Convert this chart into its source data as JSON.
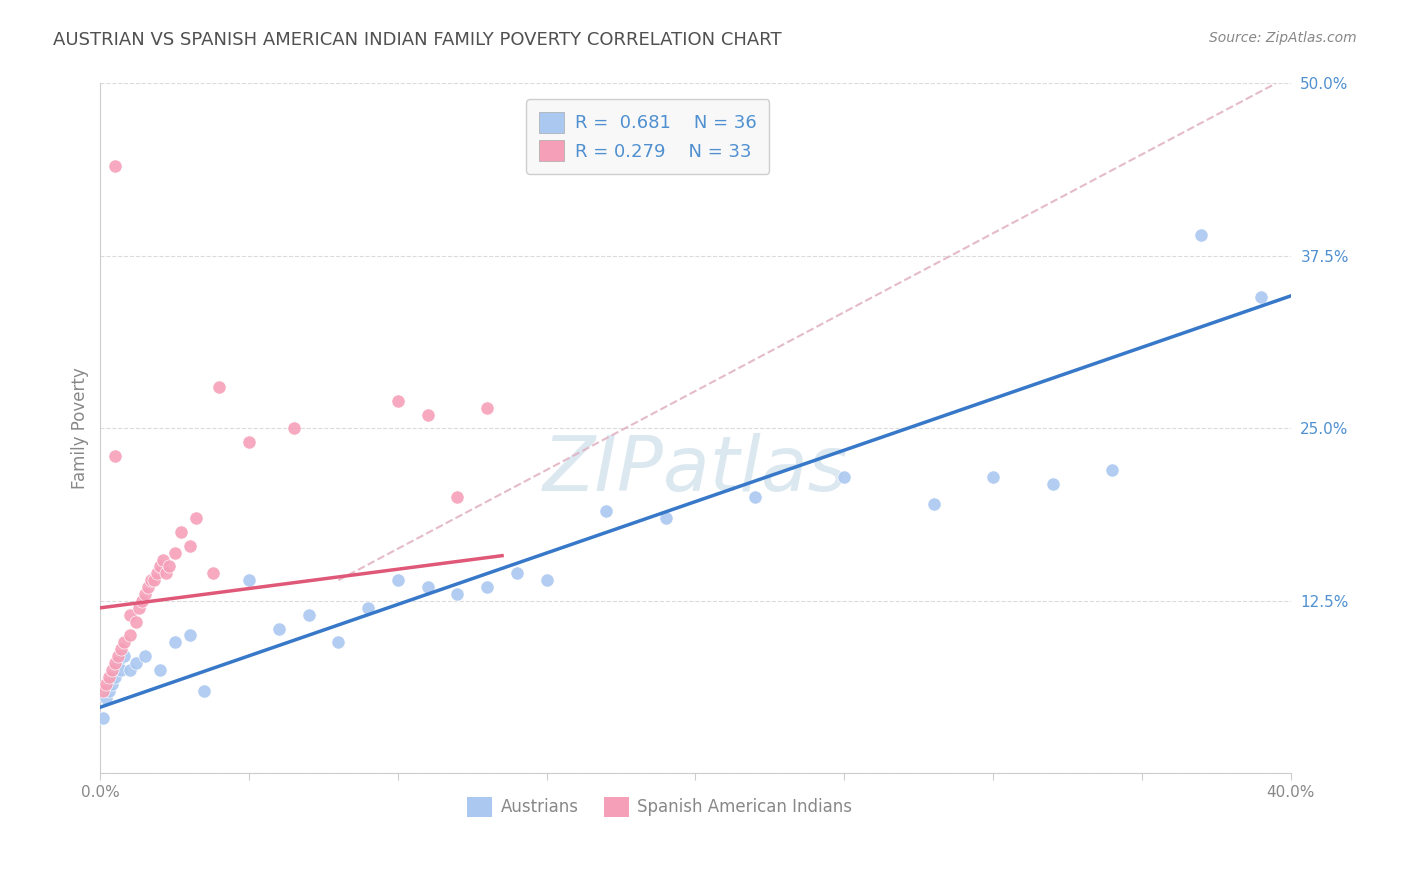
{
  "title": "AUSTRIAN VS SPANISH AMERICAN INDIAN FAMILY POVERTY CORRELATION CHART",
  "source": "Source: ZipAtlas.com",
  "ylabel": "Family Poverty",
  "xlim": [
    0.0,
    0.4
  ],
  "ylim": [
    0.0,
    0.5
  ],
  "xticks": [
    0.0,
    0.05,
    0.1,
    0.15,
    0.2,
    0.25,
    0.3,
    0.35,
    0.4
  ],
  "xticklabels": [
    "0.0%",
    "",
    "",
    "",
    "",
    "",
    "",
    "",
    "40.0%"
  ],
  "yticks": [
    0.0,
    0.125,
    0.25,
    0.375,
    0.5
  ],
  "yticklabels": [
    "",
    "12.5%",
    "25.0%",
    "37.5%",
    "50.0%"
  ],
  "austrians_x": [
    0.001,
    0.002,
    0.003,
    0.004,
    0.005,
    0.006,
    0.007,
    0.008,
    0.01,
    0.012,
    0.015,
    0.02,
    0.025,
    0.03,
    0.035,
    0.05,
    0.06,
    0.07,
    0.08,
    0.09,
    0.1,
    0.11,
    0.12,
    0.13,
    0.14,
    0.15,
    0.17,
    0.19,
    0.22,
    0.25,
    0.28,
    0.3,
    0.32,
    0.34,
    0.37,
    0.39
  ],
  "austrians_y": [
    0.04,
    0.055,
    0.06,
    0.065,
    0.07,
    0.08,
    0.075,
    0.085,
    0.075,
    0.08,
    0.085,
    0.075,
    0.095,
    0.1,
    0.06,
    0.14,
    0.105,
    0.115,
    0.095,
    0.12,
    0.14,
    0.135,
    0.13,
    0.135,
    0.145,
    0.14,
    0.19,
    0.185,
    0.2,
    0.215,
    0.195,
    0.215,
    0.21,
    0.22,
    0.39,
    0.345
  ],
  "spanish_x": [
    0.001,
    0.002,
    0.003,
    0.004,
    0.005,
    0.006,
    0.007,
    0.008,
    0.01,
    0.01,
    0.012,
    0.013,
    0.014,
    0.015,
    0.016,
    0.017,
    0.018,
    0.019,
    0.02,
    0.021,
    0.022,
    0.023,
    0.025,
    0.027,
    0.03,
    0.032,
    0.038,
    0.05,
    0.065,
    0.1,
    0.11,
    0.12,
    0.13
  ],
  "spanish_y": [
    0.06,
    0.065,
    0.07,
    0.075,
    0.08,
    0.085,
    0.09,
    0.095,
    0.1,
    0.115,
    0.11,
    0.12,
    0.125,
    0.13,
    0.135,
    0.14,
    0.14,
    0.145,
    0.15,
    0.155,
    0.145,
    0.15,
    0.16,
    0.175,
    0.165,
    0.185,
    0.145,
    0.24,
    0.25,
    0.27,
    0.26,
    0.2,
    0.265
  ],
  "spanish_outlier_x": [
    0.005
  ],
  "spanish_outlier_y": [
    0.44
  ],
  "spanish_mid1_x": [
    0.04
  ],
  "spanish_mid1_y": [
    0.28
  ],
  "spanish_mid2_x": [
    0.005
  ],
  "spanish_mid2_y": [
    0.23
  ],
  "R_austrians": 0.681,
  "N_austrians": 36,
  "R_spanish": 0.279,
  "N_spanish": 33,
  "color_austrians": "#aac8f0",
  "color_spanish": "#f5a0b8",
  "line_color_austrians": "#3878c8",
  "line_color_spanish": "#e05878",
  "dashed_line_color": "#e0b0c0",
  "background_color": "#ffffff",
  "grid_color": "#cccccc",
  "title_color": "#505050",
  "ytick_color": "#5090d0",
  "xtick_color": "#888888",
  "watermark_color": "#dce8f0",
  "legend_text_color": "#5090d0",
  "bottom_legend_color": "#888888",
  "blue_line_intercept": 0.048,
  "blue_line_slope": 0.745,
  "pink_line_intercept": 0.12,
  "pink_line_slope": 0.28,
  "dashed_line_x0": 0.08,
  "dashed_line_y0": 0.14,
  "dashed_line_x1": 0.395,
  "dashed_line_y1": 0.5
}
